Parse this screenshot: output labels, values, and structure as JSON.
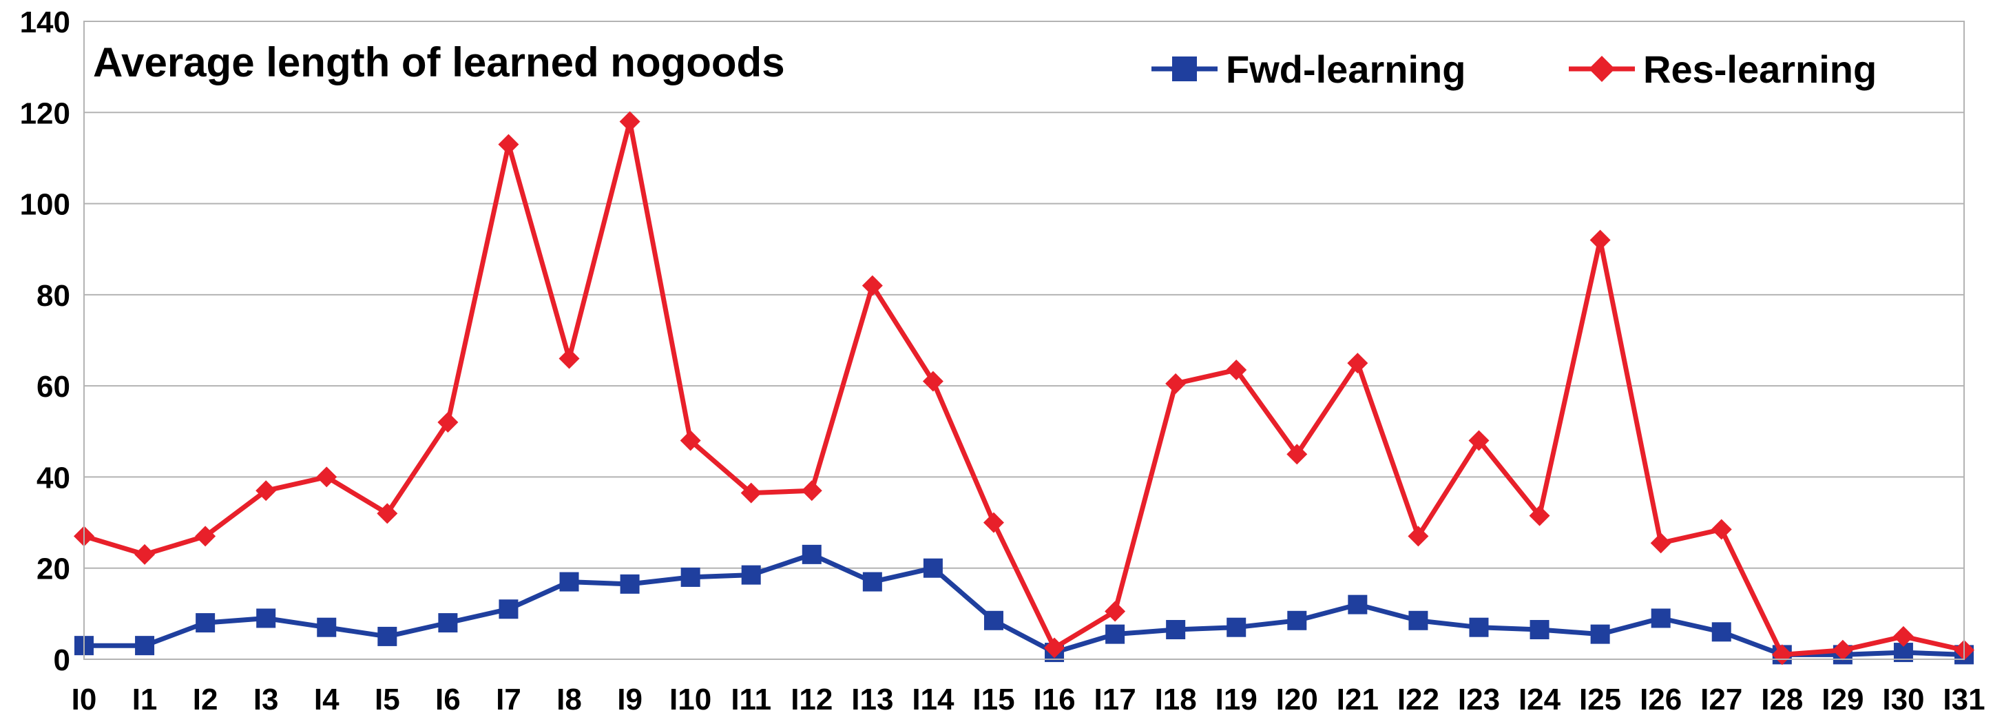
{
  "chart_data": {
    "type": "line",
    "title": "Average length of learned nogoods",
    "xlabel": "",
    "ylabel": "",
    "ylim": [
      0,
      140
    ],
    "yticks": [
      "0",
      "20",
      "40",
      "60",
      "80",
      "100",
      "120",
      "140"
    ],
    "grid": true,
    "legend_position": "top-right",
    "categories": [
      "I0",
      "I1",
      "I2",
      "I3",
      "I4",
      "I5",
      "I6",
      "I7",
      "I8",
      "I9",
      "I10",
      "I11",
      "I12",
      "I13",
      "I14",
      "I15",
      "I16",
      "I17",
      "I18",
      "I19",
      "I20",
      "I21",
      "I22",
      "I23",
      "I24",
      "I25",
      "I26",
      "I27",
      "I28",
      "I29",
      "I30",
      "I31"
    ],
    "series": [
      {
        "name": "Fwd-learning",
        "color": "#1f3f9e",
        "marker": "square",
        "values": [
          3,
          3,
          8,
          9,
          7,
          5,
          8,
          11,
          17,
          16.5,
          18,
          18.5,
          23,
          17,
          20,
          8.5,
          1.5,
          5.5,
          6.5,
          7,
          8.5,
          12,
          8.5,
          7,
          6.5,
          5.5,
          9,
          6,
          1,
          1,
          1.5,
          1
        ]
      },
      {
        "name": "Res-learning",
        "color": "#e8202a",
        "marker": "diamond",
        "values": [
          27,
          23,
          27,
          37,
          40,
          32,
          52,
          113,
          66,
          118,
          48,
          36.5,
          37,
          82,
          61,
          30,
          2.5,
          10.5,
          60.5,
          63.5,
          45,
          65,
          27,
          48,
          31.5,
          92,
          25.5,
          28.5,
          1,
          2,
          5,
          2
        ]
      }
    ]
  }
}
